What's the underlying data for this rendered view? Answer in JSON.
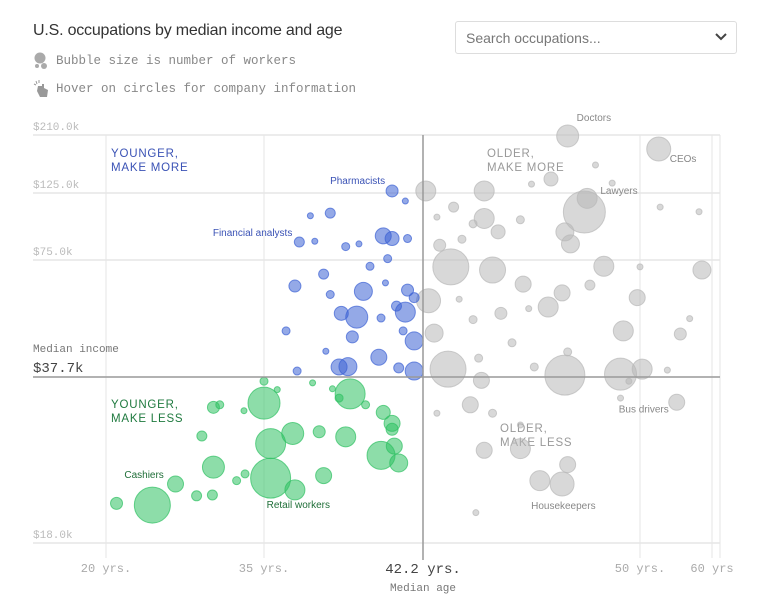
{
  "header": {
    "title": "U.S. occupations by median income and age",
    "notes": [
      {
        "icon": "bubbles-icon",
        "text": "Bubble size is number of workers"
      },
      {
        "icon": "pointer-hand-icon",
        "text": "Hover on circles for company information"
      }
    ],
    "search": {
      "placeholder": "Search occupations...",
      "value": ""
    }
  },
  "chart_data": {
    "type": "scatter",
    "subtype": "bubble",
    "xlabel": "Median age",
    "ylabel": "Median income",
    "x_ticks": [
      "20 yrs.",
      "35 yrs.",
      "50 yrs.",
      "60 yrs"
    ],
    "x_tick_values": [
      20,
      35,
      50,
      60
    ],
    "y_ticks": [
      "$210.0k",
      "$125.0k",
      "$75.0k",
      "$18.0k"
    ],
    "y_tick_values": [
      210,
      125,
      75,
      18
    ],
    "median_age": {
      "value": 42.2,
      "label": "42.2 yrs."
    },
    "median_income": {
      "value": 37.7,
      "label": "$37.7k"
    },
    "scale": "non-linear (ticks unevenly spaced)",
    "grid": true,
    "quadrants": [
      {
        "id": "younger-more",
        "line1": "YOUNGER,",
        "line2": "MAKE MORE",
        "color": "#3a52b5"
      },
      {
        "id": "older-more",
        "line1": "OLDER,",
        "line2": "MAKE MORE",
        "color": "#999999"
      },
      {
        "id": "younger-less",
        "line1": "YOUNGER,",
        "line2": "MAKE LESS",
        "color": "#1f7a3f"
      },
      {
        "id": "older-less",
        "line1": "OLDER,",
        "line2": "MAKE LESS",
        "color": "#999999"
      }
    ],
    "colors": {
      "younger_more": "#3d62d4",
      "younger_less": "#2fc163",
      "older": "#b8b8b8"
    },
    "size_note": "bubble size = relative number of workers",
    "labeled": [
      {
        "name": "Doctors",
        "age": 47.4,
        "income": 208.5,
        "size": 11
      },
      {
        "name": "CEOs",
        "age": 52.6,
        "income": 189.5,
        "size": 12
      },
      {
        "name": "Pharmacists",
        "age": 40.8,
        "income": 128,
        "size": 6
      },
      {
        "name": "Lawyers",
        "age": 48.0,
        "income": 110.8,
        "size": 21
      },
      {
        "name": "Financial analysts",
        "age": 36.6,
        "income": 88.4,
        "size": 5
      },
      {
        "name": "Cashiers",
        "age": 24.4,
        "income": 22.5,
        "size": 18
      },
      {
        "name": "Retail workers",
        "age": 35.3,
        "income": 25.7,
        "size": 20
      },
      {
        "name": "Bus drivers",
        "age": 55.1,
        "income": 34.7,
        "size": 8
      },
      {
        "name": "Housekeepers",
        "age": 47.2,
        "income": 25.0,
        "size": 12
      }
    ],
    "points": [
      [
        41.4,
        119,
        3
      ],
      [
        38.0,
        110,
        5
      ],
      [
        37.1,
        108,
        3
      ],
      [
        40.4,
        93,
        8
      ],
      [
        40.8,
        91,
        7
      ],
      [
        41.5,
        91,
        4
      ],
      [
        37.3,
        89,
        3
      ],
      [
        38.7,
        85,
        4
      ],
      [
        39.3,
        87,
        3
      ],
      [
        40.6,
        76,
        4
      ],
      [
        39.8,
        73,
        4
      ],
      [
        37.7,
        70.5,
        5
      ],
      [
        36.4,
        66.7,
        6
      ],
      [
        40.5,
        67.7,
        3
      ],
      [
        41.5,
        65.4,
        6
      ],
      [
        41.8,
        63,
        5
      ],
      [
        39.5,
        65,
        9
      ],
      [
        38.0,
        64,
        4
      ],
      [
        41.0,
        60.3,
        5
      ],
      [
        41.4,
        58.4,
        10
      ],
      [
        39.2,
        56.8,
        11
      ],
      [
        38.5,
        58,
        7
      ],
      [
        40.3,
        56.5,
        4
      ],
      [
        36.0,
        52.4,
        4
      ],
      [
        41.8,
        49.2,
        9
      ],
      [
        39.0,
        50.5,
        6
      ],
      [
        40.2,
        44,
        8
      ],
      [
        38.4,
        40.9,
        8
      ],
      [
        38.8,
        41,
        9
      ],
      [
        37.8,
        45.9,
        3
      ],
      [
        36.5,
        39.6,
        4
      ],
      [
        41.1,
        40.6,
        5
      ],
      [
        41.8,
        39.6,
        9
      ],
      [
        41.3,
        52.4,
        4
      ],
      [
        35.0,
        34.6,
        16
      ],
      [
        38.9,
        35.7,
        15
      ],
      [
        39.6,
        34.4,
        4
      ],
      [
        35.6,
        36.2,
        3
      ],
      [
        30.2,
        34.1,
        6
      ],
      [
        30.8,
        34.4,
        4
      ],
      [
        29.1,
        30.7,
        5
      ],
      [
        33.1,
        33.7,
        3
      ],
      [
        35.3,
        29.8,
        15
      ],
      [
        36.3,
        31,
        11
      ],
      [
        37.5,
        31.2,
        6
      ],
      [
        38.7,
        30.6,
        10
      ],
      [
        40.4,
        33.5,
        7
      ],
      [
        40.8,
        32.2,
        8
      ],
      [
        40.9,
        29.5,
        8
      ],
      [
        40.3,
        28.4,
        14
      ],
      [
        41.1,
        27.5,
        9
      ],
      [
        40.8,
        31.5,
        6
      ],
      [
        30.2,
        27,
        11
      ],
      [
        26.6,
        25,
        8
      ],
      [
        36.4,
        24.3,
        10
      ],
      [
        37.7,
        26,
        8
      ],
      [
        21.0,
        22.7,
        6
      ],
      [
        28.6,
        23.6,
        5
      ],
      [
        30.1,
        23.7,
        5
      ],
      [
        32.4,
        25.4,
        4
      ],
      [
        33.2,
        26.2,
        4
      ],
      [
        35.0,
        37.2,
        4
      ],
      [
        38.1,
        36.3,
        3
      ],
      [
        38.4,
        35.2,
        4
      ],
      [
        37.2,
        37.0,
        3
      ],
      [
        48.4,
        166,
        3
      ],
      [
        46.8,
        145.5,
        7
      ],
      [
        49.0,
        139.5,
        3
      ],
      [
        42.3,
        128,
        10
      ],
      [
        44.4,
        128,
        10
      ],
      [
        42.7,
        107,
        3
      ],
      [
        44.4,
        106,
        10
      ],
      [
        46.1,
        138,
        3
      ],
      [
        48.1,
        121,
        10
      ],
      [
        43.3,
        114.5,
        5
      ],
      [
        45.7,
        105,
        4
      ],
      [
        44.9,
        96,
        7
      ],
      [
        47.3,
        96,
        9
      ],
      [
        47.5,
        87,
        9
      ],
      [
        42.8,
        86,
        6
      ],
      [
        43.6,
        90.5,
        4
      ],
      [
        44.0,
        102,
        4
      ],
      [
        43.2,
        72.8,
        18
      ],
      [
        44.7,
        71.8,
        13
      ],
      [
        45.8,
        67.3,
        8
      ],
      [
        48.7,
        73,
        10
      ],
      [
        58.6,
        71.8,
        9
      ],
      [
        50.0,
        72.8,
        3
      ],
      [
        52.8,
        114.5,
        3
      ],
      [
        58.2,
        111,
        3
      ],
      [
        49.9,
        63,
        8
      ],
      [
        48.2,
        67,
        5
      ],
      [
        47.2,
        64.5,
        8
      ],
      [
        46.7,
        60,
        10
      ],
      [
        42.4,
        62,
        12
      ],
      [
        43.5,
        62.5,
        3
      ],
      [
        44.0,
        56,
        4
      ],
      [
        45.0,
        58,
        6
      ],
      [
        46.0,
        59.5,
        3
      ],
      [
        49.4,
        52.4,
        10
      ],
      [
        55.6,
        51.4,
        6
      ],
      [
        42.6,
        51.7,
        9
      ],
      [
        43.1,
        40.2,
        18
      ],
      [
        44.3,
        37.3,
        8
      ],
      [
        44.2,
        43.7,
        4
      ],
      [
        47.3,
        38.3,
        20
      ],
      [
        49.3,
        38.6,
        16
      ],
      [
        50.3,
        40.2,
        10
      ],
      [
        46.2,
        40.9,
        4
      ],
      [
        47.4,
        45.7,
        4
      ],
      [
        45.4,
        48.6,
        4
      ],
      [
        43.9,
        34.4,
        8
      ],
      [
        42.7,
        33.4,
        3
      ],
      [
        44.7,
        33.4,
        4
      ],
      [
        44.4,
        29,
        8
      ],
      [
        45.7,
        29.2,
        10
      ],
      [
        45.7,
        32,
        3
      ],
      [
        47.4,
        27.3,
        8
      ],
      [
        46.4,
        25.4,
        10
      ],
      [
        49.6,
        37.2,
        3
      ],
      [
        44.1,
        21.6,
        3
      ],
      [
        49.3,
        35.2,
        3
      ],
      [
        53.8,
        39.9,
        3
      ],
      [
        56.9,
        56.3,
        3
      ]
    ]
  }
}
